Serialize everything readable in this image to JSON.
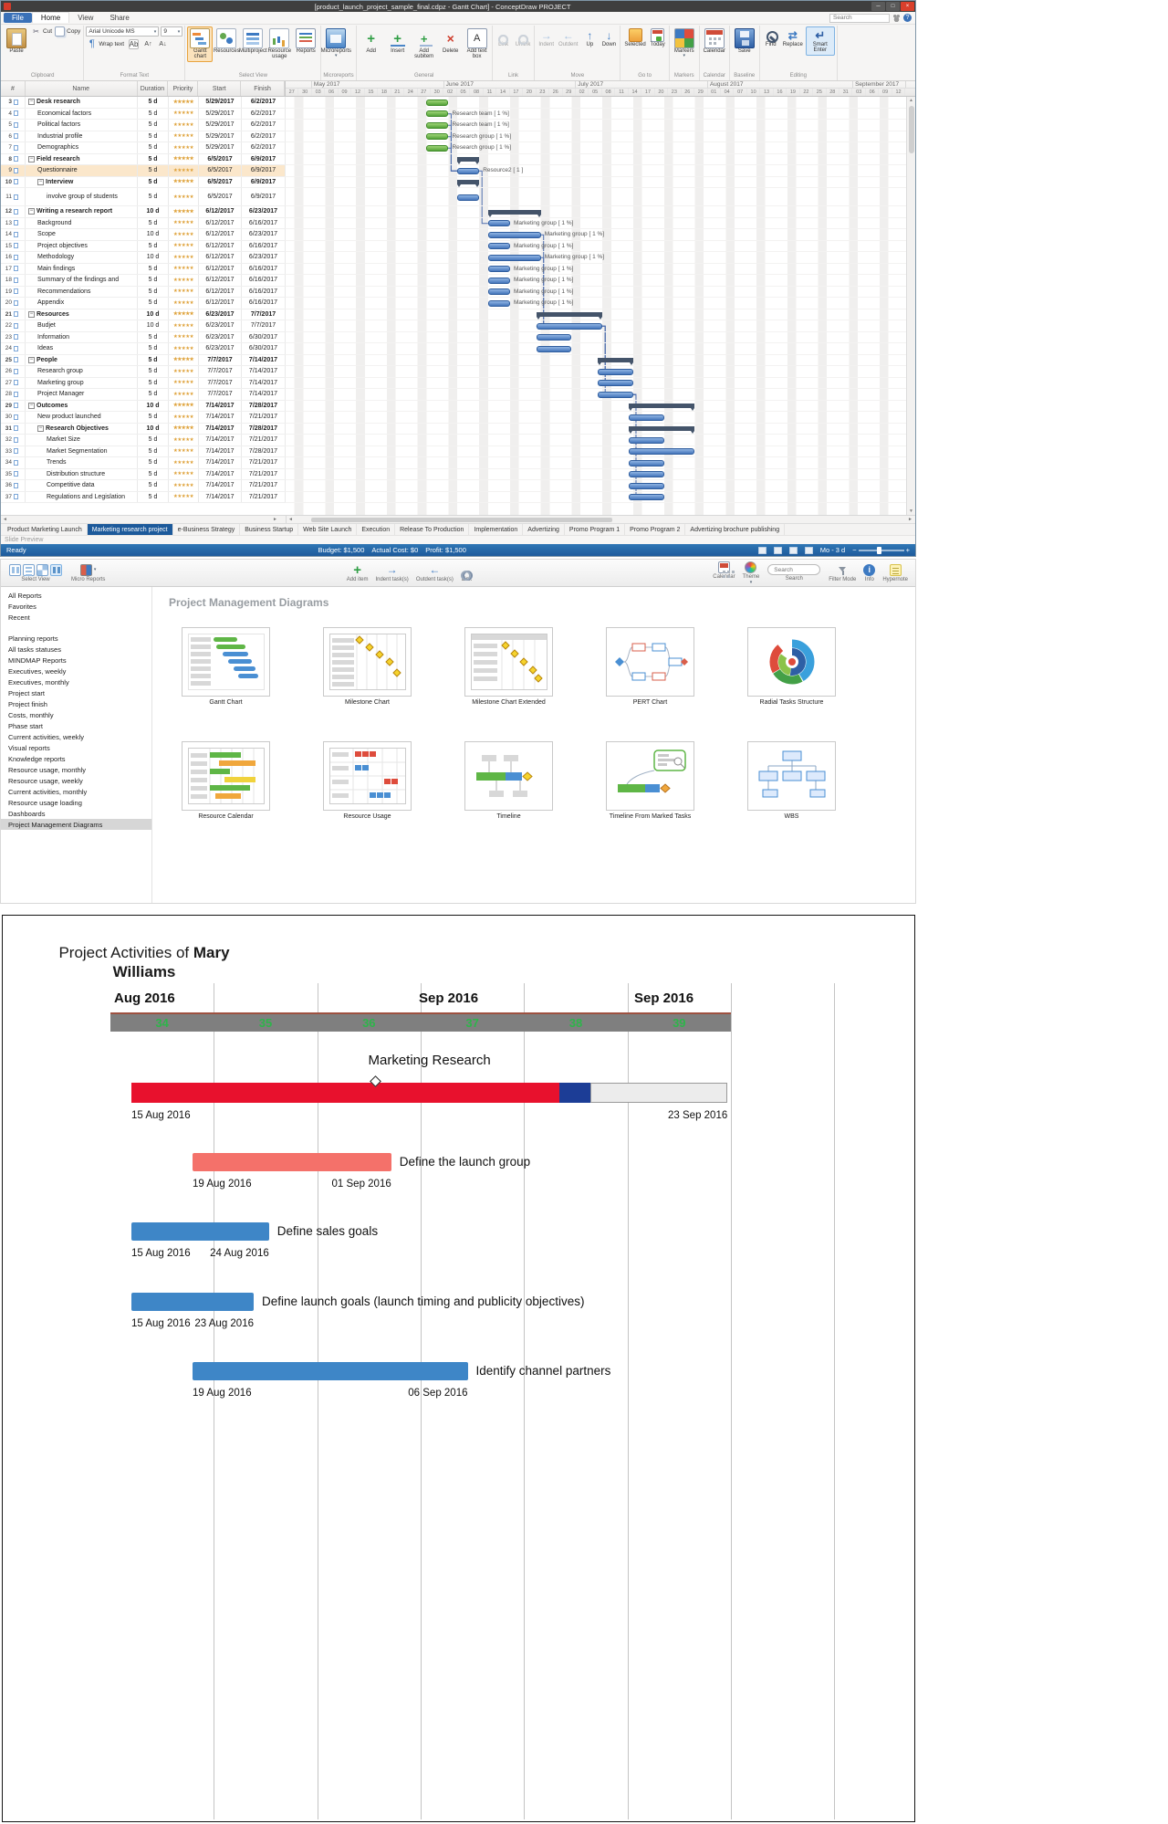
{
  "app": {
    "window_title": "[product_launch_project_sample_final.cdpz - Gantt Chart] - ConceptDraw PROJECT",
    "menu_tabs": [
      "File",
      "Home",
      "View",
      "Share"
    ],
    "search_placeholder": "Search",
    "slide_preview": "Slide Preview",
    "status": {
      "ready": "Ready",
      "budget": "Budget: $1,500",
      "actual": "Actual Cost: $0",
      "profit": "Profit: $1,500",
      "scale": "Mo - 3 d"
    },
    "sheet_tabs": [
      "Product Marketing Launch",
      "Marketing research project",
      "e-Business Strategy",
      "Business Startup",
      "Web Site Launch",
      "Execution",
      "Release To Production",
      "Implementation",
      "Advertizing",
      "Promo Program 1",
      "Promo Program 2",
      "Advertizing brochure publishing"
    ],
    "active_sheet": "Marketing research project"
  },
  "ribbon": {
    "font_name": "Arial Unicode MS",
    "font_size": "9",
    "groups": [
      {
        "label": "Clipboard",
        "buttons": [
          {
            "t": "Paste",
            "ic": "paste",
            "k": "big"
          },
          {
            "t": "Cut",
            "ic": "cut",
            "k": "sm"
          },
          {
            "t": "Copy",
            "ic": "copy",
            "k": "sm"
          }
        ]
      },
      {
        "label": "Format Text",
        "font_controls": true,
        "buttons": [
          {
            "t": "Wrap text",
            "ic": "wrap",
            "k": "sm"
          },
          {
            "t": "",
            "ic": "ab",
            "k": "sm"
          },
          {
            "t": "",
            "ic": "fup",
            "k": "sm"
          },
          {
            "t": "",
            "ic": "fdn",
            "k": "sm"
          }
        ]
      },
      {
        "label": "Select View",
        "buttons": [
          {
            "t": "Gantt chart",
            "ic": "gantt",
            "k": "big",
            "active": true
          },
          {
            "t": "Resources",
            "ic": "resources",
            "k": "big"
          },
          {
            "t": "Multiproject",
            "ic": "multiproject",
            "k": "big"
          },
          {
            "t": "Resource usage",
            "ic": "resusage",
            "k": "big"
          },
          {
            "t": "Reports",
            "ic": "reports",
            "k": "big"
          }
        ]
      },
      {
        "label": "Microreports",
        "buttons": [
          {
            "t": "Microreports",
            "ic": "microreports",
            "k": "big",
            "caret": true
          }
        ]
      },
      {
        "label": "General",
        "buttons": [
          {
            "t": "Add",
            "ic": "add",
            "k": "big"
          },
          {
            "t": "Insert",
            "ic": "insert",
            "k": "big"
          },
          {
            "t": "Add subitem",
            "ic": "addsub",
            "k": "big"
          },
          {
            "t": "Delete",
            "ic": "delete",
            "k": "big"
          },
          {
            "t": "Add text box",
            "ic": "textbox",
            "k": "big"
          }
        ]
      },
      {
        "label": "Link",
        "buttons": [
          {
            "t": "Link",
            "ic": "link",
            "k": "med",
            "dis": true
          },
          {
            "t": "Unlink",
            "ic": "unlink",
            "k": "med",
            "dis": true
          }
        ]
      },
      {
        "label": "Move",
        "buttons": [
          {
            "t": "Indent",
            "ic": "indent",
            "k": "med",
            "dis": true
          },
          {
            "t": "Outdent",
            "ic": "outdent",
            "k": "med",
            "dis": true
          },
          {
            "t": "Up",
            "ic": "up",
            "k": "med"
          },
          {
            "t": "Down",
            "ic": "down",
            "k": "med"
          }
        ]
      },
      {
        "label": "Go to",
        "buttons": [
          {
            "t": "Selected",
            "ic": "selected",
            "k": "med"
          },
          {
            "t": "Today",
            "ic": "today",
            "k": "med"
          }
        ]
      },
      {
        "label": "Markers",
        "buttons": [
          {
            "t": "Markers",
            "ic": "markers",
            "k": "big",
            "caret": true
          }
        ]
      },
      {
        "label": "Calendar",
        "buttons": [
          {
            "t": "Calendar",
            "ic": "calendar",
            "k": "big"
          }
        ]
      },
      {
        "label": "Baseline",
        "buttons": [
          {
            "t": "Save",
            "ic": "save",
            "k": "big"
          }
        ]
      },
      {
        "label": "Editing",
        "buttons": [
          {
            "t": "Find",
            "ic": "find",
            "k": "med"
          },
          {
            "t": "Replace",
            "ic": "replace",
            "k": "med"
          },
          {
            "t": "Smart Enter",
            "ic": "smartenter",
            "k": "med",
            "sel": true
          }
        ]
      }
    ]
  },
  "gantt": {
    "columns": [
      "#",
      "Name",
      "Duration",
      "Priority",
      "Start",
      "Finish"
    ],
    "months": [
      {
        "label": "",
        "cols": 2
      },
      {
        "label": "May 2017",
        "cols": 10
      },
      {
        "label": "June 2017",
        "cols": 10
      },
      {
        "label": "July 2017",
        "cols": 10
      },
      {
        "label": "August 2017",
        "cols": 11
      },
      {
        "label": "September 2017",
        "cols": 4
      }
    ],
    "days": [
      "27",
      "30",
      "03",
      "06",
      "09",
      "12",
      "15",
      "18",
      "21",
      "24",
      "27",
      "30",
      "02",
      "05",
      "08",
      "11",
      "14",
      "17",
      "20",
      "23",
      "26",
      "29",
      "02",
      "05",
      "08",
      "11",
      "14",
      "17",
      "20",
      "23",
      "26",
      "29",
      "01",
      "04",
      "07",
      "10",
      "13",
      "16",
      "19",
      "22",
      "25",
      "28",
      "31",
      "03",
      "06",
      "09",
      "12"
    ],
    "priority_stars": "★★★★★",
    "rows": [
      {
        "n": 3,
        "name": "Desk research",
        "lvl": 0,
        "grp": true,
        "dur": "5 d",
        "start": "5/29/2017",
        "end": "6/2/2017",
        "bar": "green"
      },
      {
        "n": 4,
        "name": "Economical factors",
        "lvl": 1,
        "dur": "5 d",
        "start": "5/29/2017",
        "end": "6/2/2017",
        "bar": "green",
        "label": "Research team [ 1 %]"
      },
      {
        "n": 5,
        "name": "Political factors",
        "lvl": 1,
        "dur": "5 d",
        "start": "5/29/2017",
        "end": "6/2/2017",
        "bar": "green",
        "label": "Research team [ 1 %]"
      },
      {
        "n": 6,
        "name": "Industrial profile",
        "lvl": 1,
        "dur": "5 d",
        "start": "5/29/2017",
        "end": "6/2/2017",
        "bar": "green",
        "label": "Research group [ 1 %]"
      },
      {
        "n": 7,
        "name": "Demographics",
        "lvl": 1,
        "dur": "5 d",
        "start": "5/29/2017",
        "end": "6/2/2017",
        "bar": "green",
        "label": "Research group [ 1 %]"
      },
      {
        "n": 8,
        "name": "Field research",
        "lvl": 0,
        "grp": true,
        "dur": "5 d",
        "start": "6/5/2017",
        "end": "6/9/2017",
        "bar": "summary"
      },
      {
        "n": 9,
        "name": "Questionnaire",
        "lvl": 1,
        "dur": "5 d",
        "start": "6/5/2017",
        "end": "6/9/2017",
        "bar": "blue",
        "label": "Resource2 [ 1 ]",
        "hl": true
      },
      {
        "n": 10,
        "name": "Interview",
        "lvl": 1,
        "grp": true,
        "dur": "5 d",
        "start": "6/5/2017",
        "end": "6/9/2017",
        "bar": "summary"
      },
      {
        "n": 11,
        "name": "involve group of students",
        "lvl": 2,
        "dur": "5 d",
        "start": "6/5/2017",
        "end": "6/9/2017",
        "bar": "blue",
        "tall": true
      },
      {
        "n": 12,
        "name": "Writing a research report",
        "lvl": 0,
        "grp": true,
        "dur": "10 d",
        "start": "6/12/2017",
        "end": "6/23/2017",
        "bar": "summary"
      },
      {
        "n": 13,
        "name": "Background",
        "lvl": 1,
        "dur": "5 d",
        "start": "6/12/2017",
        "end": "6/16/2017",
        "bar": "blue",
        "label": "Marketing group [ 1 %]"
      },
      {
        "n": 14,
        "name": "Scope",
        "lvl": 1,
        "dur": "10 d",
        "start": "6/12/2017",
        "end": "6/23/2017",
        "bar": "blue",
        "label": "Marketing group [ 1 %]"
      },
      {
        "n": 15,
        "name": "Project objectives",
        "lvl": 1,
        "dur": "5 d",
        "start": "6/12/2017",
        "end": "6/16/2017",
        "bar": "blue",
        "label": "Marketing group [ 1 %]"
      },
      {
        "n": 16,
        "name": "Methodology",
        "lvl": 1,
        "dur": "10 d",
        "start": "6/12/2017",
        "end": "6/23/2017",
        "bar": "blue",
        "label": "Marketing group [ 1 %]"
      },
      {
        "n": 17,
        "name": "Main findings",
        "lvl": 1,
        "dur": "5 d",
        "start": "6/12/2017",
        "end": "6/16/2017",
        "bar": "blue",
        "label": "Marketing group [ 1 %]"
      },
      {
        "n": 18,
        "name": "Summary of the findings and",
        "lvl": 1,
        "dur": "5 d",
        "start": "6/12/2017",
        "end": "6/16/2017",
        "bar": "blue",
        "label": "Marketing group [ 1 %]"
      },
      {
        "n": 19,
        "name": "Recommendations",
        "lvl": 1,
        "dur": "5 d",
        "start": "6/12/2017",
        "end": "6/16/2017",
        "bar": "blue",
        "label": "Marketing group [ 1 %]"
      },
      {
        "n": 20,
        "name": "Appendix",
        "lvl": 1,
        "dur": "5 d",
        "start": "6/12/2017",
        "end": "6/16/2017",
        "bar": "blue",
        "label": "Marketing group [ 1 %]"
      },
      {
        "n": 21,
        "name": "Resources",
        "lvl": 0,
        "grp": true,
        "dur": "10 d",
        "start": "6/23/2017",
        "end": "7/7/2017",
        "bar": "summary"
      },
      {
        "n": 22,
        "name": "Budjet",
        "lvl": 1,
        "dur": "10 d",
        "start": "6/23/2017",
        "end": "7/7/2017",
        "bar": "blue"
      },
      {
        "n": 23,
        "name": "Information",
        "lvl": 1,
        "dur": "5 d",
        "start": "6/23/2017",
        "end": "6/30/2017",
        "bar": "blue"
      },
      {
        "n": 24,
        "name": "Ideas",
        "lvl": 1,
        "dur": "5 d",
        "start": "6/23/2017",
        "end": "6/30/2017",
        "bar": "blue"
      },
      {
        "n": 25,
        "name": "People",
        "lvl": 0,
        "grp": true,
        "dur": "5 d",
        "start": "7/7/2017",
        "end": "7/14/2017",
        "bar": "summary"
      },
      {
        "n": 26,
        "name": "Research group",
        "lvl": 1,
        "dur": "5 d",
        "start": "7/7/2017",
        "end": "7/14/2017",
        "bar": "blue"
      },
      {
        "n": 27,
        "name": "Marketing group",
        "lvl": 1,
        "dur": "5 d",
        "start": "7/7/2017",
        "end": "7/14/2017",
        "bar": "blue"
      },
      {
        "n": 28,
        "name": "Project Manager",
        "lvl": 1,
        "dur": "5 d",
        "start": "7/7/2017",
        "end": "7/14/2017",
        "bar": "blue"
      },
      {
        "n": 29,
        "name": "Outcomes",
        "lvl": 0,
        "grp": true,
        "dur": "10 d",
        "start": "7/14/2017",
        "end": "7/28/2017",
        "bar": "summary"
      },
      {
        "n": 30,
        "name": "New product launched",
        "lvl": 1,
        "dur": "5 d",
        "start": "7/14/2017",
        "end": "7/21/2017",
        "bar": "blue"
      },
      {
        "n": 31,
        "name": "Research Objectives",
        "lvl": 1,
        "grp": true,
        "dur": "10 d",
        "start": "7/14/2017",
        "end": "7/28/2017",
        "bar": "summary"
      },
      {
        "n": 32,
        "name": "Market Size",
        "lvl": 2,
        "dur": "5 d",
        "start": "7/14/2017",
        "end": "7/21/2017",
        "bar": "blue"
      },
      {
        "n": 33,
        "name": "Market Segmentation",
        "lvl": 2,
        "dur": "5 d",
        "start": "7/14/2017",
        "end": "7/28/2017",
        "bar": "blue"
      },
      {
        "n": 34,
        "name": "Trends",
        "lvl": 2,
        "dur": "5 d",
        "start": "7/14/2017",
        "end": "7/21/2017",
        "bar": "blue"
      },
      {
        "n": 35,
        "name": "Distribution structure",
        "lvl": 2,
        "dur": "5 d",
        "start": "7/14/2017",
        "end": "7/21/2017",
        "bar": "blue"
      },
      {
        "n": 36,
        "name": "Competitive data",
        "lvl": 2,
        "dur": "5 d",
        "start": "7/14/2017",
        "end": "7/21/2017",
        "bar": "blue"
      },
      {
        "n": 37,
        "name": "Regulations and Legislation",
        "lvl": 2,
        "dur": "5 d",
        "start": "7/14/2017",
        "end": "7/21/2017",
        "bar": "blue"
      }
    ],
    "links": [
      [
        4,
        9
      ],
      [
        5,
        9
      ],
      [
        6,
        9
      ],
      [
        7,
        9
      ],
      [
        9,
        13
      ],
      [
        14,
        22
      ],
      [
        16,
        22
      ],
      [
        22,
        26
      ],
      [
        22,
        27
      ],
      [
        22,
        28
      ],
      [
        28,
        30
      ],
      [
        28,
        32
      ],
      [
        28,
        33
      ],
      [
        28,
        34
      ],
      [
        28,
        35
      ],
      [
        28,
        36
      ],
      [
        28,
        37
      ]
    ]
  },
  "reports": {
    "title": "Project Management Diagrams",
    "toolbar": {
      "view_group_label": "Select View",
      "micro_label": "Micro Reports",
      "center": [
        {
          "t": "Add item",
          "ic": "add"
        },
        {
          "t": "Indent task(s)",
          "ic": "indent"
        },
        {
          "t": "Outdent task(s)",
          "ic": "outdent"
        },
        {
          "t": "Link",
          "ic": "link"
        }
      ],
      "right": [
        {
          "t": "Calendar",
          "ic": "calendar"
        },
        {
          "t": "Theme",
          "ic": "theme",
          "caret": true
        }
      ],
      "search_label": "Search",
      "search_placeholder": "Search",
      "right2": [
        {
          "t": "Filter Mode",
          "ic": "filter"
        },
        {
          "t": "Info",
          "ic": "info"
        },
        {
          "t": "Hypernote",
          "ic": "hyper"
        }
      ]
    },
    "sidebar": [
      "All Reports",
      "Favorites",
      "Recent",
      "",
      "Planning reports",
      "All tasks statuses",
      "MINDMAP Reports",
      "Executives, weekly",
      "Executives, monthly",
      "Project start",
      "Project finish",
      "Costs, monthly",
      "Phase start",
      "Current activities, weekly",
      "Visual reports",
      "Knowledge reports",
      "Resource usage, monthly",
      "Resource usage, weekly",
      "Current activities, monthly",
      "Resource usage loading",
      "Dashboards",
      "Project Management Diagrams"
    ],
    "selected": "Project Management Diagrams",
    "items": [
      "Gantt Chart",
      "Milestone Chart",
      "Milestone Chart Extended",
      "PERT Chart",
      "Radial Tasks Structure",
      "Resource Calendar",
      "Resource Usage",
      "Timeline",
      "Timeline From Marked Tasks",
      "WBS"
    ]
  },
  "timeline": {
    "title_prefix": "Project Activities of ",
    "title_name": "Mary Williams",
    "months": [
      "Aug 2016",
      "Sep 2016",
      "Sep 2016"
    ],
    "weeks": [
      "34",
      "35",
      "36",
      "37",
      "38",
      "39"
    ],
    "gridlines": [
      231,
      345,
      458,
      571,
      685,
      798,
      911
    ],
    "tasks": [
      {
        "name": "Marketing Research",
        "start_label": "15 Aug 2016",
        "end_label": "23 Sep 2016",
        "s": 0,
        "e": 39,
        "label_above": true,
        "milestone_day": 16,
        "segments": [
          {
            "c": "#e8112d",
            "d": 28
          },
          {
            "c": "#1c3d96",
            "d": 2
          },
          {
            "c": "#ececec",
            "d": 9,
            "outline": true
          }
        ]
      },
      {
        "name": "Define the launch group",
        "start_label": "19 Aug 2016",
        "end_label": "01 Sep 2016",
        "s": 4,
        "e": 17,
        "c": "#f4716a"
      },
      {
        "name": "Define sales goals",
        "start_label": "15 Aug 2016",
        "end_label": "24 Aug 2016",
        "s": 0,
        "e": 9,
        "c": "#3e86c7"
      },
      {
        "name": "Define launch goals (launch timing and publicity objectives)",
        "start_label": "15 Aug 2016",
        "end_label": "23 Aug 2016",
        "s": 0,
        "e": 8,
        "c": "#3e86c7"
      },
      {
        "name": "Identify channel partners",
        "start_label": "19 Aug 2016",
        "end_label": "06 Sep 2016",
        "s": 4,
        "e": 22,
        "c": "#3e86c7"
      }
    ]
  }
}
